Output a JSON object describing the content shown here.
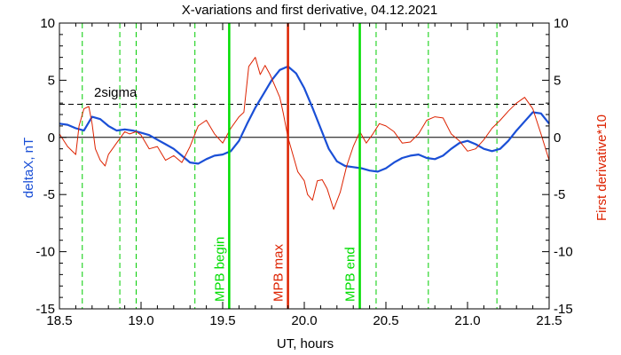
{
  "chart_data": {
    "type": "line",
    "title": "X-variations and first derivative, 04.12.2021",
    "xlabel": "UT, hours",
    "ylabel_left": "deltaX, nT",
    "ylabel_right": "First derivative*10",
    "xlim": [
      18.5,
      21.5
    ],
    "ylim_left": [
      -15,
      10
    ],
    "ylim_right": [
      -15,
      10
    ],
    "x_ticks": [
      "18.5",
      "19.0",
      "19.5",
      "20.0",
      "20.5",
      "21.0",
      "21.5"
    ],
    "y_ticks": [
      "10",
      "5",
      "0",
      "-5",
      "-10",
      "-15"
    ],
    "threshold": {
      "label": "2sigma",
      "value": 2.9
    },
    "markers": [
      {
        "label": "MPB begin",
        "x": 19.54,
        "color": "#00dd00"
      },
      {
        "label": "MPB max",
        "x": 19.9,
        "color": "#dd2200"
      },
      {
        "label": "MPB end",
        "x": 20.34,
        "color": "#00dd00"
      }
    ],
    "guide_lines_x": [
      18.64,
      18.87,
      18.97,
      19.33,
      20.44,
      20.76,
      21.18
    ],
    "series": [
      {
        "color": "#1a4fd6",
        "x": [
          18.5,
          18.55,
          18.6,
          18.65,
          18.7,
          18.75,
          18.8,
          18.85,
          18.9,
          18.95,
          19.0,
          19.05,
          19.1,
          19.15,
          19.2,
          19.25,
          19.3,
          19.35,
          19.4,
          19.45,
          19.5,
          19.55,
          19.6,
          19.65,
          19.7,
          19.75,
          19.8,
          19.85,
          19.9,
          19.95,
          20.0,
          20.05,
          20.1,
          20.15,
          20.2,
          20.25,
          20.3,
          20.35,
          20.4,
          20.45,
          20.5,
          20.55,
          20.6,
          20.65,
          20.7,
          20.75,
          20.8,
          20.85,
          20.9,
          20.95,
          21.0,
          21.05,
          21.1,
          21.15,
          21.2,
          21.25,
          21.3,
          21.35,
          21.4,
          21.45,
          21.5
        ],
        "y": [
          1.2,
          1.1,
          0.8,
          0.6,
          1.8,
          1.6,
          1.0,
          0.6,
          0.7,
          0.6,
          0.4,
          0.2,
          -0.2,
          -0.6,
          -1.0,
          -1.6,
          -2.2,
          -2.3,
          -1.9,
          -1.6,
          -1.5,
          -1.2,
          -0.3,
          1.2,
          2.6,
          3.8,
          5.0,
          5.9,
          6.2,
          5.6,
          4.3,
          2.6,
          0.8,
          -1.0,
          -2.1,
          -2.5,
          -2.6,
          -2.7,
          -2.9,
          -3.0,
          -2.7,
          -2.2,
          -1.8,
          -1.6,
          -1.5,
          -1.8,
          -1.9,
          -1.6,
          -1.0,
          -0.5,
          -0.3,
          -0.6,
          -1.0,
          -1.2,
          -1.0,
          -0.3,
          0.6,
          1.4,
          2.2,
          2.1,
          1.2
        ]
      },
      {
        "color": "#dd2200",
        "x": [
          18.5,
          18.55,
          18.6,
          18.62,
          18.65,
          18.68,
          18.7,
          18.72,
          18.75,
          18.78,
          18.8,
          18.85,
          18.9,
          18.93,
          18.97,
          19.0,
          19.05,
          19.1,
          19.15,
          19.2,
          19.25,
          19.3,
          19.35,
          19.4,
          19.45,
          19.5,
          19.55,
          19.6,
          19.63,
          19.66,
          19.7,
          19.73,
          19.76,
          19.79,
          19.82,
          19.85,
          19.87,
          19.9,
          19.93,
          19.96,
          20.0,
          20.02,
          20.05,
          20.08,
          20.11,
          20.14,
          20.18,
          20.22,
          20.26,
          20.3,
          20.34,
          20.38,
          20.42,
          20.46,
          20.5,
          20.55,
          20.6,
          20.65,
          20.7,
          20.75,
          20.8,
          20.85,
          20.9,
          20.95,
          21.0,
          21.05,
          21.1,
          21.15,
          21.2,
          21.25,
          21.3,
          21.35,
          21.4,
          21.45,
          21.5
        ],
        "y": [
          0.3,
          -0.8,
          -1.5,
          1.0,
          2.5,
          2.7,
          1.2,
          -1.0,
          -2.0,
          -2.5,
          -1.5,
          -0.5,
          0.5,
          0.3,
          0.5,
          0.2,
          -1.0,
          -0.8,
          -2.0,
          -1.6,
          -2.2,
          -0.8,
          1.0,
          1.5,
          0.3,
          -0.5,
          0.8,
          1.8,
          2.2,
          6.2,
          7.0,
          5.5,
          6.3,
          5.5,
          4.5,
          3.5,
          2.2,
          0.0,
          -1.5,
          -3.0,
          -3.8,
          -5.0,
          -5.5,
          -3.8,
          -3.7,
          -4.5,
          -6.3,
          -4.8,
          -2.5,
          -0.8,
          0.5,
          -0.5,
          0.3,
          1.2,
          1.0,
          0.5,
          -0.5,
          -0.4,
          0.3,
          1.5,
          1.8,
          1.7,
          0.3,
          -0.3,
          -1.2,
          -1.0,
          -0.2,
          0.8,
          1.5,
          2.3,
          3.0,
          3.5,
          2.5,
          0.3,
          -2.0
        ]
      }
    ]
  }
}
